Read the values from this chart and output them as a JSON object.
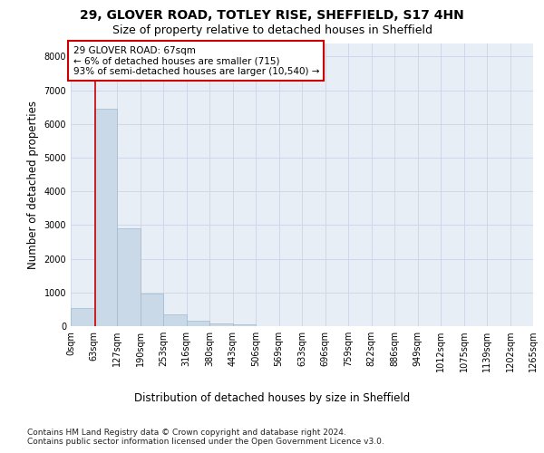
{
  "title": "29, GLOVER ROAD, TOTLEY RISE, SHEFFIELD, S17 4HN",
  "subtitle": "Size of property relative to detached houses in Sheffield",
  "xlabel": "Distribution of detached houses by size in Sheffield",
  "ylabel": "Number of detached properties",
  "bar_values": [
    550,
    6450,
    2900,
    975,
    340,
    160,
    90,
    60,
    10,
    5,
    2,
    1,
    0,
    0,
    0,
    0,
    0,
    0,
    0,
    0
  ],
  "bar_color": "#c9d9e8",
  "bar_edge_color": "#a0b8cc",
  "x_labels": [
    "0sqm",
    "63sqm",
    "127sqm",
    "190sqm",
    "253sqm",
    "316sqm",
    "380sqm",
    "443sqm",
    "506sqm",
    "569sqm",
    "633sqm",
    "696sqm",
    "759sqm",
    "822sqm",
    "886sqm",
    "949sqm",
    "1012sqm",
    "1075sqm",
    "1139sqm",
    "1202sqm",
    "1265sqm"
  ],
  "ylim": [
    0,
    8400
  ],
  "yticks": [
    0,
    1000,
    2000,
    3000,
    4000,
    5000,
    6000,
    7000,
    8000
  ],
  "annotation_text": "29 GLOVER ROAD: 67sqm\n← 6% of detached houses are smaller (715)\n93% of semi-detached houses are larger (10,540) →",
  "annotation_box_color": "#ffffff",
  "annotation_box_edge": "#cc0000",
  "red_line_color": "#cc0000",
  "footer_line1": "Contains HM Land Registry data © Crown copyright and database right 2024.",
  "footer_line2": "Contains public sector information licensed under the Open Government Licence v3.0.",
  "grid_color": "#d0d8e8",
  "bg_color": "#e8eef5",
  "fig_bg_color": "#ffffff",
  "title_fontsize": 10,
  "subtitle_fontsize": 9,
  "axis_label_fontsize": 8.5,
  "tick_fontsize": 7,
  "annotation_fontsize": 7.5,
  "footer_fontsize": 6.5
}
